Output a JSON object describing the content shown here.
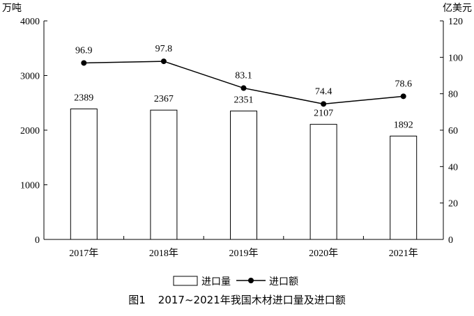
{
  "chart_data": {
    "type": "bar",
    "title": "",
    "caption": "图1　 2017~2021年我国木材进口量及进口额",
    "categories": [
      "2017年",
      "2018年",
      "2019年",
      "2020年",
      "2021年"
    ],
    "y_left": {
      "label": "万吨",
      "range": [
        0,
        4000
      ],
      "ticks": [
        0,
        1000,
        2000,
        3000,
        4000
      ]
    },
    "y_right": {
      "label": "亿美元",
      "range": [
        0,
        120
      ],
      "ticks": [
        0,
        20,
        40,
        60,
        80,
        100,
        120
      ]
    },
    "series": [
      {
        "name": "进口量",
        "kind": "bar",
        "axis": "left",
        "values": [
          2389,
          2367,
          2351,
          2107,
          1892
        ],
        "labels": [
          "2389",
          "2367",
          "2351",
          "2107",
          "1892"
        ]
      },
      {
        "name": "进口额",
        "kind": "line",
        "axis": "right",
        "values": [
          96.9,
          97.8,
          83.1,
          74.4,
          78.6
        ],
        "labels": [
          "96.9",
          "97.8",
          "83.1",
          "74.4",
          "78.6"
        ]
      }
    ],
    "grid": false,
    "legend_position": "bottom"
  }
}
